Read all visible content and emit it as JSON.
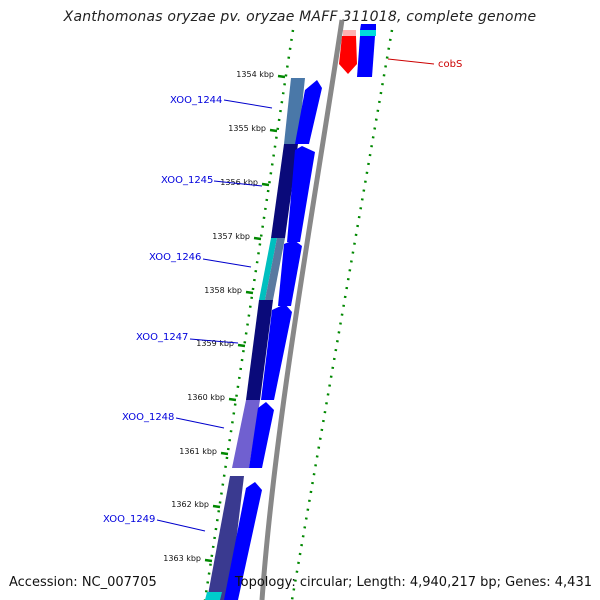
{
  "title": "Xanthomonas oryzae pv. oryzae MAFF 311018, complete genome",
  "footer": {
    "accession": "Accession: NC_007705",
    "topology": "Topology: circular; Length: 4,940,217 bp; Genes: 4,431"
  },
  "ticks": [
    "1354 kbp",
    "1355 kbp",
    "1356 kbp",
    "1357 kbp",
    "1358 kbp",
    "1359 kbp",
    "1360 kbp",
    "1361 kbp",
    "1362 kbp",
    "1363 kbp"
  ],
  "genes": [
    "XOO_1244",
    "XOO_1245",
    "XOO_1246",
    "XOO_1247",
    "XOO_1248",
    "XOO_1249"
  ],
  "right_gene": "cobS",
  "colors": {
    "cds": "#0000ff",
    "cds_highlight": "#ff0000",
    "scale": "#008800",
    "backbone": "#888888",
    "label": "#0000dd",
    "label_right": "#cc0000",
    "cyan": "#00cccc"
  }
}
